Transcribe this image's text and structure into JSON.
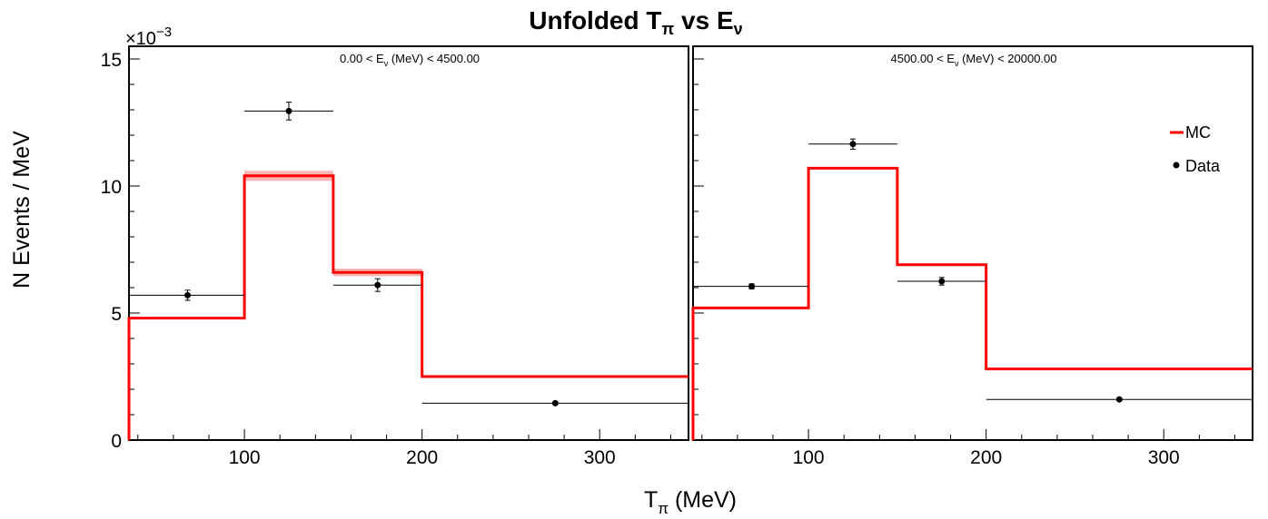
{
  "chart_data": {
    "type": "line",
    "title": "Unfolded T",
    "title_sub1": "π",
    "title_mid": " vs E",
    "title_sub2": "ν",
    "ylabel": "N Events / MeV",
    "xlabel": "T",
    "xlabel_sub": "π",
    "xlabel_unit": " (MeV)",
    "y_exponent_prefix": "×10",
    "y_exponent_power": "−3",
    "y_scale_factor": 0.001,
    "xlim": [
      35,
      350
    ],
    "ylim": [
      0,
      15.5
    ],
    "x_ticks": [
      100,
      200,
      300
    ],
    "x_tick_labels": [
      "100",
      "200",
      "300"
    ],
    "y_ticks": [
      0,
      5,
      10,
      15
    ],
    "y_tick_labels": [
      "0",
      "5",
      "10",
      "15"
    ],
    "legend": {
      "placement": "top-right",
      "entries": [
        {
          "label": "MC",
          "color": "#ff0000",
          "style": "line"
        },
        {
          "label": "Data",
          "color": "#000000",
          "style": "marker"
        }
      ]
    },
    "colors": {
      "mc": "#ff0000",
      "mc_band": "#f4b6b6",
      "data": "#000000"
    },
    "panels": [
      {
        "label_pre": "0.00 < E",
        "label_sub": "ν",
        "label_post": " (MeV) < 4500.00",
        "bin_edges": [
          35,
          100,
          150,
          200,
          350
        ],
        "series": [
          {
            "name": "MC",
            "values": [
              4.8,
              10.4,
              6.6,
              2.5
            ],
            "band": [
              0.0,
              0.2,
              0.15,
              0.0
            ]
          },
          {
            "name": "Data",
            "x": [
              68,
              125,
              175,
              275
            ],
            "values": [
              5.7,
              12.95,
              6.1,
              1.45
            ],
            "yerr": [
              0.2,
              0.35,
              0.25,
              0.05
            ],
            "xerr_low": [
              33,
              25,
              25,
              75
            ],
            "xerr_high": [
              32,
              25,
              25,
              75
            ]
          }
        ]
      },
      {
        "label_pre": "4500.00 < E",
        "label_sub": "ν",
        "label_post": " (MeV) < 20000.00",
        "bin_edges": [
          35,
          100,
          150,
          200,
          350
        ],
        "series": [
          {
            "name": "MC",
            "values": [
              5.2,
              10.7,
              6.9,
              2.8
            ],
            "band": [
              0.0,
              0.0,
              0.0,
              0.0
            ]
          },
          {
            "name": "Data",
            "x": [
              68,
              125,
              175,
              275
            ],
            "values": [
              6.05,
              11.65,
              6.25,
              1.6
            ],
            "yerr": [
              0.1,
              0.2,
              0.15,
              0.05
            ],
            "xerr_low": [
              33,
              25,
              25,
              75
            ],
            "xerr_high": [
              32,
              25,
              25,
              75
            ]
          }
        ]
      }
    ]
  }
}
